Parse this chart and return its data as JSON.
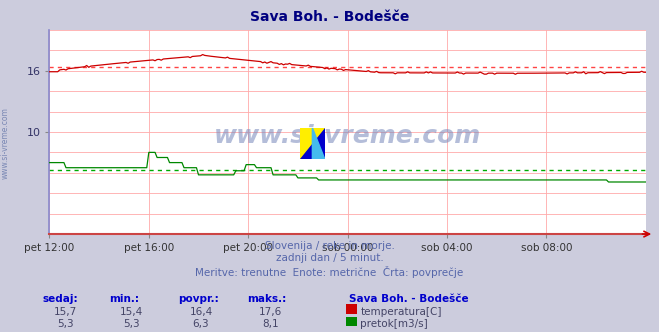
{
  "title": "Sava Boh. - Bodešče",
  "title_color": "#000080",
  "bg_color": "#ccccdd",
  "plot_bg_color": "#ffffff",
  "grid_color": "#ffaaaa",
  "xlim_min": 0,
  "xlim_max": 288,
  "ylim_min": 0,
  "ylim_max": 20,
  "ytick_positions": [
    10,
    16
  ],
  "ytick_labels": [
    "10",
    "16"
  ],
  "xtick_positions": [
    0,
    48,
    96,
    144,
    192,
    240
  ],
  "xtick_labels": [
    "pet 12:00",
    "pet 16:00",
    "pet 20:00",
    "sob 00:00",
    "sob 04:00",
    "sob 08:00"
  ],
  "temp_avg": 16.4,
  "flow_avg": 6.3,
  "temp_color": "#cc0000",
  "flow_color": "#008800",
  "avg_line_color_temp": "#ff4444",
  "avg_line_color_flow": "#00aa00",
  "watermark": "www.si-vreme.com",
  "watermark_color": "#7788bb",
  "subtitle1": "Slovenija / reke in morje.",
  "subtitle2": "zadnji dan / 5 minut.",
  "subtitle3": "Meritve: trenutne  Enote: metrične  Črta: povprečje",
  "text_color": "#5566aa",
  "footer_label_color": "#0000cc",
  "footer_value_color": "#444466",
  "station_name": "Sava Boh. - Bodešče",
  "sedaj_temp": "15,7",
  "min_temp": "15,4",
  "povpr_temp": "16,4",
  "maks_temp": "17,6",
  "sedaj_flow": "5,3",
  "min_flow": "5,3",
  "povpr_flow": "6,3",
  "maks_flow": "8,1",
  "left_label": "www.si-vreme.com",
  "left_label_color": "#6677aa",
  "spine_left_color": "#8888cc",
  "spine_bottom_color": "#cc4444",
  "arrow_color": "#cc0000"
}
